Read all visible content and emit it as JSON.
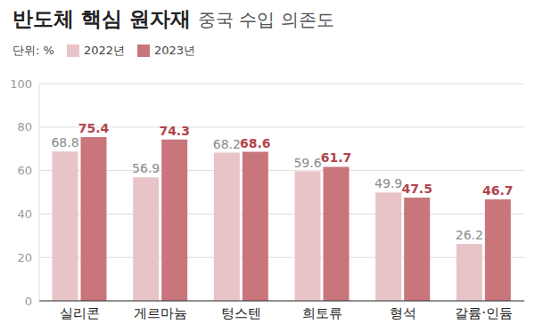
{
  "chart_data": {
    "type": "bar",
    "title": "반도체 핵심 원자재",
    "subtitle": "중국 수입 의존도",
    "y_label": "단위: %",
    "categories": [
      "실리콘",
      "게르마늄",
      "텅스텐",
      "희토류",
      "형석",
      "갈륨·인듐"
    ],
    "series": [
      {
        "name": "2022년",
        "color": "#e8c4c9",
        "values": [
          68.8,
          56.9,
          68.2,
          59.6,
          49.9,
          26.2
        ]
      },
      {
        "name": "2023년",
        "color": "#c8767c",
        "values": [
          75.4,
          74.3,
          68.6,
          61.7,
          47.5,
          46.7
        ]
      }
    ],
    "ylim": [
      0,
      100
    ],
    "yticks": [
      0,
      20,
      40,
      60,
      80,
      100
    ],
    "grid": true,
    "legend": "top-left",
    "data_labels": true
  }
}
